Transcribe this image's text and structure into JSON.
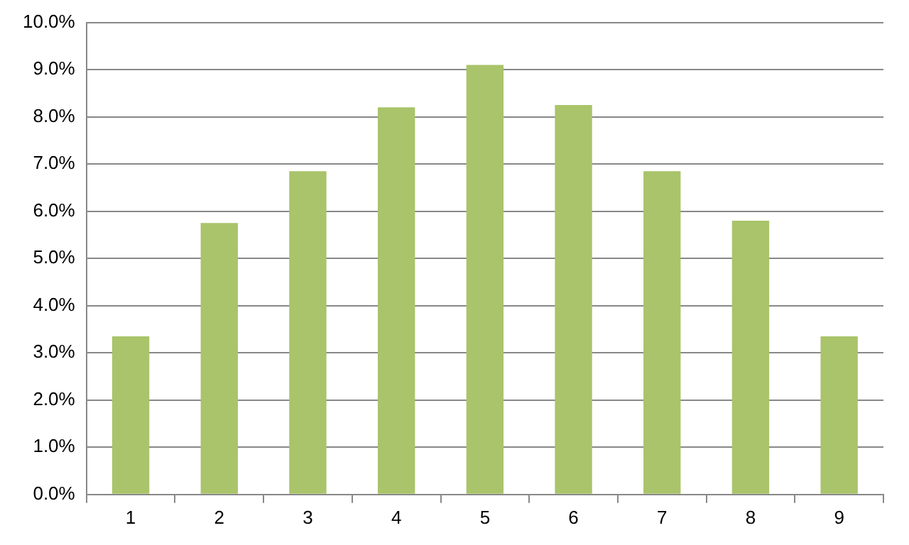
{
  "chart_data": {
    "type": "bar",
    "categories": [
      "1",
      "2",
      "3",
      "4",
      "5",
      "6",
      "7",
      "8",
      "9"
    ],
    "values": [
      3.35,
      5.75,
      6.85,
      8.2,
      9.1,
      8.25,
      6.85,
      5.8,
      3.35
    ],
    "color": "#a9c46a",
    "ylim": [
      0,
      10
    ],
    "yticks": [
      {
        "value": 0,
        "label": "0.0%"
      },
      {
        "value": 1,
        "label": "1.0%"
      },
      {
        "value": 2,
        "label": "2.0%"
      },
      {
        "value": 3,
        "label": "3.0%"
      },
      {
        "value": 4,
        "label": "4.0%"
      },
      {
        "value": 5,
        "label": "5.0%"
      },
      {
        "value": 6,
        "label": "6.0%"
      },
      {
        "value": 7,
        "label": "7.0%"
      },
      {
        "value": 8,
        "label": "8.0%"
      },
      {
        "value": 9,
        "label": "9.0%"
      },
      {
        "value": 10,
        "label": "10.0%"
      }
    ],
    "grid": "y"
  }
}
